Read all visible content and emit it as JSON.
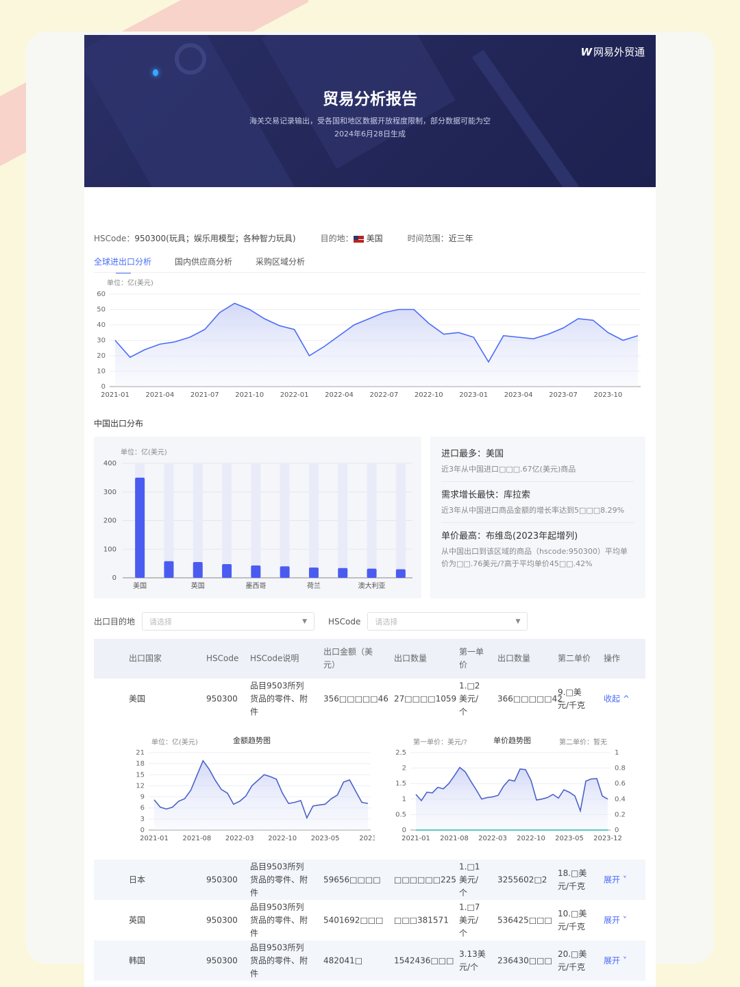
{
  "brand": {
    "logo_mark": "W",
    "name": "网易外贸通"
  },
  "banner": {
    "title": "贸易分析报告",
    "subtitle": "海关交易记录输出，受各国和地区数据开放程度限制，部分数据可能为空",
    "date": "2024年6月28日生成"
  },
  "meta": {
    "hscode_label": "HSCode：",
    "hscode_value": "950300(玩具；娱乐用模型；各种智力玩具)",
    "dest_label": "目的地：",
    "dest_value": "美国",
    "range_label": "时间范围：",
    "range_value": "近三年"
  },
  "tabs": [
    {
      "label": "全球进出口分析",
      "active": true
    },
    {
      "label": "国内供应商分析"
    },
    {
      "label": "采购区域分析"
    }
  ],
  "chart_data": [
    {
      "type": "area",
      "unit": "单位：亿(美元)",
      "ylim": [
        0,
        60
      ],
      "yticks": [
        0,
        10,
        20,
        30,
        40,
        50,
        60
      ],
      "xticks": [
        "2021-01",
        "2021-04",
        "2021-07",
        "2021-10",
        "2022-01",
        "2022-04",
        "2022-07",
        "2022-10",
        "2023-01",
        "2023-04",
        "2023-07",
        "2023-10"
      ],
      "x_start": "2021-01",
      "x_end": "2023-12",
      "values": [
        30,
        19,
        24,
        27.5,
        29,
        32,
        37,
        48,
        54,
        50,
        44,
        39.5,
        37,
        20,
        26,
        33,
        40,
        44,
        48,
        50,
        50,
        41,
        34,
        35,
        32,
        16,
        33,
        32,
        31,
        34,
        38,
        44,
        43,
        35,
        30,
        33
      ],
      "color": "#4a6cf7",
      "grid": true
    },
    {
      "type": "bar",
      "title": "中国出口分布",
      "unit": "单位：亿(美元)",
      "ylim": [
        0,
        400
      ],
      "yticks": [
        0,
        100,
        200,
        300,
        400
      ],
      "categories": [
        "美国",
        "",
        "英国",
        "",
        "墨西哥",
        "",
        "荷兰",
        "",
        "澳大利亚",
        ""
      ],
      "values": [
        350,
        58,
        55,
        48,
        43,
        40,
        36,
        34,
        32,
        30
      ],
      "color": "#4a5cf0"
    },
    {
      "type": "area",
      "title": "金额趋势图",
      "unit": "单位：亿(美元)",
      "ylim": [
        0,
        21
      ],
      "yticks": [
        0,
        3,
        6,
        9,
        12,
        15,
        18,
        21
      ],
      "xticks": [
        "2021-01",
        "2021-08",
        "2022-03",
        "2022-10",
        "2023-05",
        "2023"
      ],
      "values": [
        8.2,
        6.2,
        5.7,
        6.2,
        7.8,
        8.5,
        10.8,
        14.8,
        18.8,
        16.5,
        13.5,
        11,
        10,
        7,
        7.8,
        9.2,
        12,
        13.5,
        15,
        14.5,
        13.8,
        10,
        7.2,
        7.5,
        8,
        3.3,
        6.5,
        6.8,
        7,
        8.5,
        9.5,
        13,
        13.6,
        10.5,
        7.5,
        7.2
      ]
    },
    {
      "type": "area",
      "title": "单价趋势图",
      "left_label": "第一单价：美元/?",
      "right_label": "第二单价：暂无",
      "ylim": [
        0,
        2.5
      ],
      "yticks": [
        0,
        0.5,
        1,
        1.5,
        2,
        2.5
      ],
      "y2lim": [
        0,
        1
      ],
      "y2ticks": [
        0,
        0.2,
        0.4,
        0.6,
        0.8,
        1
      ],
      "xticks": [
        "2021-01",
        "2021-08",
        "2022-03",
        "2022-10",
        "2023-05",
        "2023-12"
      ],
      "values": [
        1.15,
        0.95,
        1.22,
        1.2,
        1.38,
        1.33,
        1.5,
        1.75,
        2.02,
        1.88,
        1.58,
        1.3,
        1.0,
        1.05,
        1.07,
        1.12,
        1.42,
        1.62,
        1.58,
        1.97,
        1.95,
        1.6,
        0.97,
        1.0,
        1.05,
        1.15,
        1.03,
        1.3,
        1.22,
        1.1,
        0.62,
        1.58,
        1.65,
        1.66,
        1.1,
        1.0
      ],
      "second_values_color": "#5cc8c0"
    }
  ],
  "insights": [
    {
      "title": "进口最多：美国",
      "desc": "近3年从中国进口□□□.67亿(美元)商品"
    },
    {
      "title": "需求增长最快：库拉索",
      "desc": "近3年从中国进口商品金额的增长率达到5□□□8.29%"
    },
    {
      "title": "单价最高：布维岛(2023年起增列)",
      "desc": "从中国出口到该区域的商品（hscode:950300）平均单价为□□.76美元/?高于平均单价45□□.42%"
    }
  ],
  "filters": {
    "dest_label": "出口目的地",
    "dest_placeholder": "请选择",
    "hs_label": "HSCode",
    "hs_placeholder": "请选择"
  },
  "table": {
    "headers": [
      "出口国家",
      "HSCode",
      "HSCode说明",
      "出口金额（美元）",
      "出口数量",
      "第一单价",
      "出口数量",
      "第二单价",
      "操作"
    ],
    "rows": [
      {
        "country": "美国",
        "hscode": "950300",
        "desc": "品目9503所列货品的零件、附件",
        "amount": "356□□□□□46",
        "qty1": "27□□□□1059",
        "price1": "1.□2美元/个",
        "qty2": "366□□□□□42",
        "price2": "9.□美元/千克",
        "op": "收起 ^"
      },
      {
        "country": "日本",
        "hscode": "950300",
        "desc": "品目9503所列货品的零件、附件",
        "amount": "59656□□□□",
        "qty1": "□□□□□□225",
        "price1": "1.□1美元/个",
        "qty2": "3255602□2",
        "price2": "18.□美元/千克",
        "op": "展开 ˅"
      },
      {
        "country": "英国",
        "hscode": "950300",
        "desc": "品目9503所列货品的零件、附件",
        "amount": "5401692□□□",
        "qty1": "□□□381571",
        "price1": "1.□7美元/个",
        "qty2": "536425□□□",
        "price2": "10.□美元/千克",
        "op": "展开 ˅"
      },
      {
        "country": "韩国",
        "hscode": "950300",
        "desc": "品目9503所列货品的零件、附件",
        "amount": "482041□",
        "qty1": "1542436□□□",
        "price1": "3.13美元/个",
        "qty2": "236430□□□",
        "price2": "20.□美元/千克",
        "op": "展开 ˅"
      }
    ]
  }
}
